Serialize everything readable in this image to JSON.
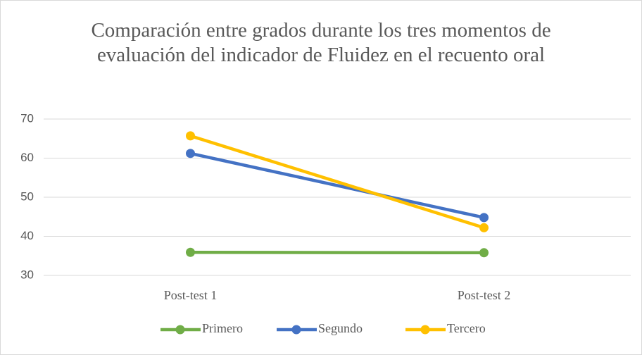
{
  "chart_data": {
    "type": "line",
    "title": "Comparación entre grados durante los tres momentos de evaluación del indicador de Fluidez en el recuento oral",
    "categories": [
      "Post-test 1",
      "Post-test 2"
    ],
    "series": [
      {
        "name": "Primero",
        "color": "#70ad47",
        "values": [
          35.9,
          35.8
        ]
      },
      {
        "name": "Segundo",
        "color": "#4472c4",
        "values": [
          61.2,
          44.8
        ]
      },
      {
        "name": "Tercero",
        "color": "#ffc000",
        "values": [
          65.7,
          42.2
        ]
      }
    ],
    "ylim": [
      30,
      70
    ],
    "yticks": [
      30,
      40,
      50,
      60,
      70
    ],
    "grid": true,
    "legend": "bottom"
  }
}
